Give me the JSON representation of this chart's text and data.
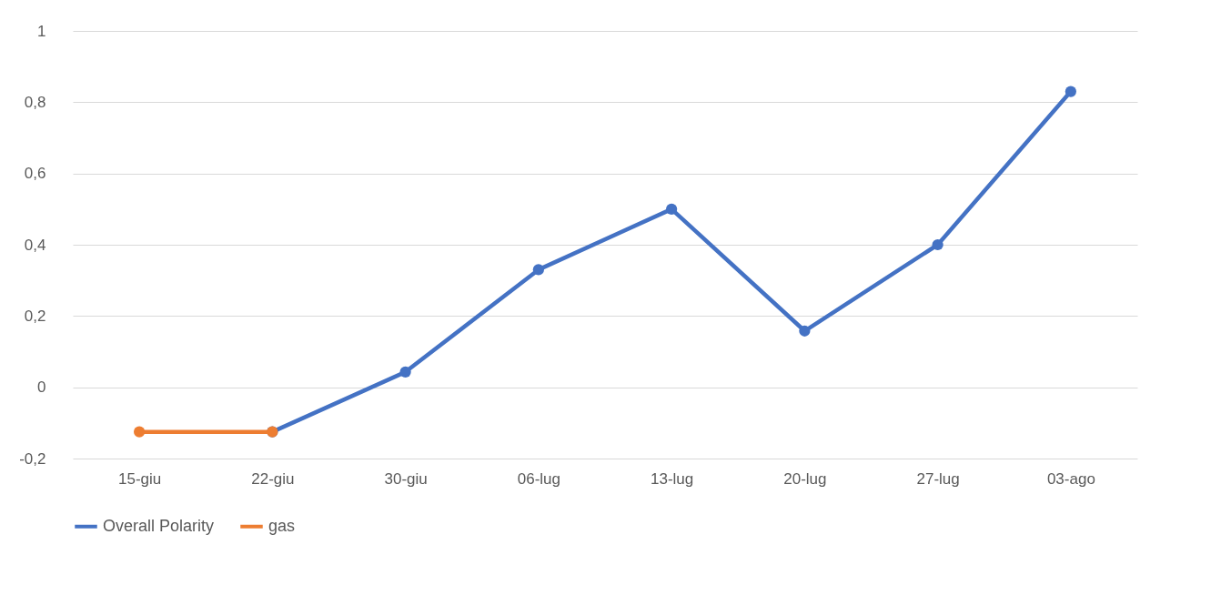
{
  "chart_data": {
    "type": "line",
    "categories": [
      "15-giu",
      "22-giu",
      "30-giu",
      "06-lug",
      "13-lug",
      "20-lug",
      "27-lug",
      "03-ago"
    ],
    "series": [
      {
        "name": "Overall Polarity",
        "color": "#4472c4",
        "values": [
          null,
          -0.125,
          0.043,
          0.33,
          0.5,
          0.158,
          0.4,
          0.83
        ]
      },
      {
        "name": "gas",
        "color": "#ed7d31",
        "values": [
          -0.125,
          -0.125,
          null,
          null,
          null,
          null,
          null,
          null
        ]
      }
    ],
    "ylim": [
      -0.2,
      1
    ],
    "yticks": [
      {
        "value": -0.2,
        "label": "-0,2"
      },
      0,
      {
        "value": 0.2,
        "label": "0,2"
      },
      {
        "value": 0.4,
        "label": "0,4"
      },
      {
        "value": 0.6,
        "label": "0,6"
      },
      {
        "value": 0.8,
        "label": "0,8"
      },
      1
    ],
    "grid": "y",
    "legend": "bottom",
    "marker": "circle",
    "line_style": "solid"
  }
}
